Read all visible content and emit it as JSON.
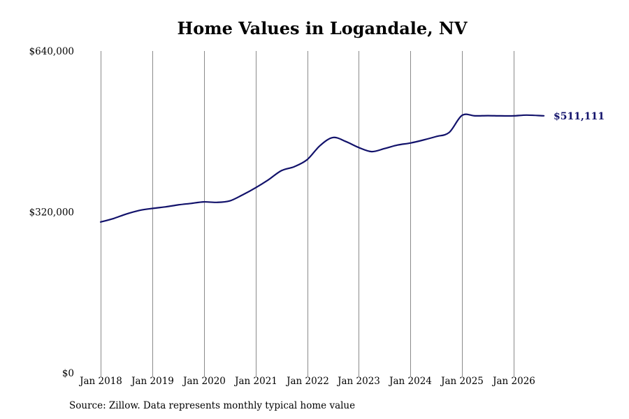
{
  "chart_data": {
    "type": "line",
    "title": "Home Values in Logandale, NV",
    "xlabel": "",
    "ylabel": "",
    "ylim": [
      0,
      640000
    ],
    "xlim": [
      "2018-01",
      "2026-08"
    ],
    "y_ticks": [
      {
        "value": 0,
        "label": "$0"
      },
      {
        "value": 320000,
        "label": "$320,000"
      },
      {
        "value": 640000,
        "label": "$640,000"
      }
    ],
    "x_ticks": [
      {
        "value": "2018-01",
        "label": "Jan 2018"
      },
      {
        "value": "2019-01",
        "label": "Jan 2019"
      },
      {
        "value": "2020-01",
        "label": "Jan 2020"
      },
      {
        "value": "2021-01",
        "label": "Jan 2021"
      },
      {
        "value": "2022-01",
        "label": "Jan 2022"
      },
      {
        "value": "2023-01",
        "label": "Jan 2023"
      },
      {
        "value": "2024-01",
        "label": "Jan 2024"
      },
      {
        "value": "2025-01",
        "label": "Jan 2025"
      },
      {
        "value": "2026-01",
        "label": "Jan 2026"
      }
    ],
    "grid": "vertical",
    "series": [
      {
        "color": "#12126b",
        "end_label": "$511,111",
        "points": [
          {
            "x": "2018-01",
            "y": 300000
          },
          {
            "x": "2018-04",
            "y": 307000
          },
          {
            "x": "2018-07",
            "y": 316000
          },
          {
            "x": "2018-10",
            "y": 323000
          },
          {
            "x": "2019-01",
            "y": 327000
          },
          {
            "x": "2019-04",
            "y": 330000
          },
          {
            "x": "2019-07",
            "y": 334000
          },
          {
            "x": "2019-10",
            "y": 337000
          },
          {
            "x": "2020-01",
            "y": 340000
          },
          {
            "x": "2020-04",
            "y": 339000
          },
          {
            "x": "2020-07",
            "y": 342000
          },
          {
            "x": "2020-10",
            "y": 354000
          },
          {
            "x": "2021-01",
            "y": 368000
          },
          {
            "x": "2021-04",
            "y": 384000
          },
          {
            "x": "2021-07",
            "y": 402000
          },
          {
            "x": "2021-10",
            "y": 410000
          },
          {
            "x": "2022-01",
            "y": 424000
          },
          {
            "x": "2022-04",
            "y": 452000
          },
          {
            "x": "2022-07",
            "y": 468000
          },
          {
            "x": "2022-10",
            "y": 460000
          },
          {
            "x": "2023-01",
            "y": 448000
          },
          {
            "x": "2023-04",
            "y": 440000
          },
          {
            "x": "2023-07",
            "y": 446000
          },
          {
            "x": "2023-10",
            "y": 453000
          },
          {
            "x": "2024-01",
            "y": 457000
          },
          {
            "x": "2024-04",
            "y": 463000
          },
          {
            "x": "2024-07",
            "y": 470000
          },
          {
            "x": "2024-10",
            "y": 478000
          },
          {
            "x": "2025-01",
            "y": 512000
          },
          {
            "x": "2025-04",
            "y": 511000
          },
          {
            "x": "2025-07",
            "y": 511500
          },
          {
            "x": "2025-10",
            "y": 511000
          },
          {
            "x": "2026-01",
            "y": 511000
          },
          {
            "x": "2026-04",
            "y": 512500
          },
          {
            "x": "2026-08",
            "y": 511111
          }
        ]
      }
    ]
  },
  "footer": {
    "source": "Source: Zillow. Data represents monthly typical home value"
  }
}
